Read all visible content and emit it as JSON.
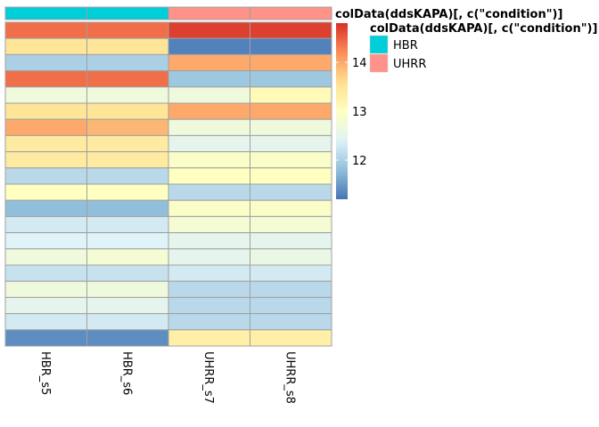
{
  "chart_data": {
    "type": "heatmap",
    "columns": [
      "HBR_s5",
      "HBR_s6",
      "UHRR_s7",
      "UHRR_s8"
    ],
    "annotation": {
      "title": "colData(ddsKAPA)[, c(\"condition\")]",
      "column_title": "colData(ddsKAPA)[, c(\"condition\")]",
      "values": [
        "HBR",
        "HBR",
        "UHRR",
        "UHRR"
      ],
      "levels": [
        {
          "label": "HBR",
          "color": "#00CED9"
        },
        {
          "label": "UHRR",
          "color": "#FF9289"
        }
      ]
    },
    "rows": [
      [
        14.4,
        14.4,
        14.7,
        14.7
      ],
      [
        13.5,
        13.5,
        11.3,
        11.3
      ],
      [
        12.0,
        12.0,
        14.0,
        14.0
      ],
      [
        14.4,
        14.4,
        11.9,
        11.9
      ],
      [
        12.7,
        12.7,
        12.7,
        13.1
      ],
      [
        13.5,
        13.5,
        14.0,
        14.0
      ],
      [
        14.0,
        13.9,
        12.7,
        12.7
      ],
      [
        13.4,
        13.4,
        12.5,
        12.5
      ],
      [
        13.4,
        13.4,
        12.9,
        12.9
      ],
      [
        12.1,
        12.1,
        13.0,
        13.0
      ],
      [
        13.0,
        13.0,
        12.1,
        12.1
      ],
      [
        11.8,
        11.8,
        12.9,
        12.9
      ],
      [
        12.3,
        12.3,
        12.8,
        12.8
      ],
      [
        12.4,
        12.4,
        12.5,
        12.5
      ],
      [
        12.7,
        12.8,
        12.5,
        12.6
      ],
      [
        12.2,
        12.2,
        12.3,
        12.3
      ],
      [
        12.7,
        12.7,
        12.1,
        12.1
      ],
      [
        12.5,
        12.5,
        12.1,
        12.1
      ],
      [
        12.3,
        12.3,
        12.1,
        12.1
      ],
      [
        11.4,
        11.4,
        13.3,
        13.3
      ]
    ],
    "legend": {
      "ticks": [
        12,
        13,
        14
      ],
      "range": [
        11.2,
        14.8
      ]
    },
    "palette": [
      "#4575B4",
      "#91BFDB",
      "#E0F3F8",
      "#FFFFBF",
      "#FEE090",
      "#FC8D59",
      "#D73027"
    ],
    "grid": true,
    "cell_border_color": "#A0A0A0"
  }
}
